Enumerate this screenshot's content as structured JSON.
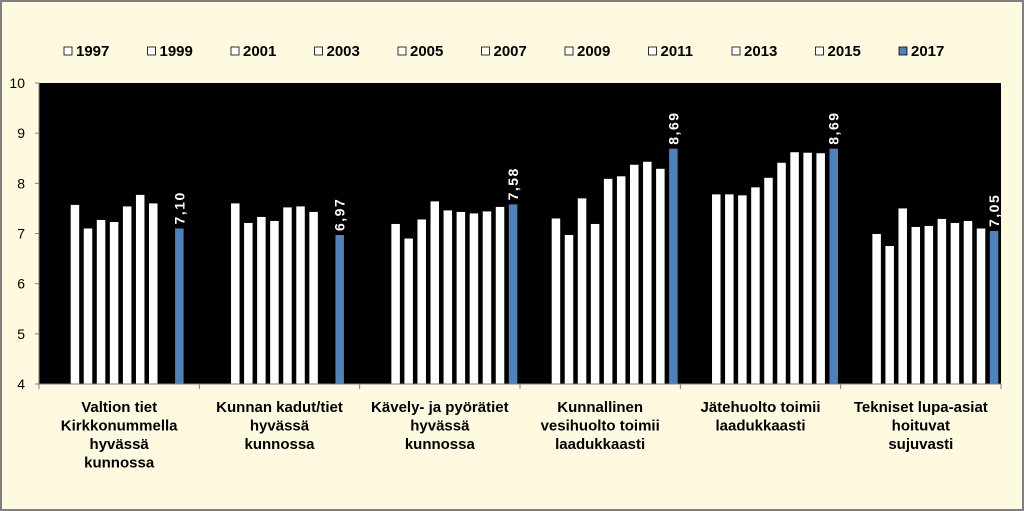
{
  "chart_data": {
    "type": "bar",
    "title": "",
    "xlabel": "",
    "ylabel": "",
    "ylim": [
      4,
      10
    ],
    "yticks": [
      4,
      5,
      6,
      7,
      8,
      9,
      10
    ],
    "grid": false,
    "legend_position": "top",
    "categories": [
      "Valtion tiet Kirkkonummella hyvässä kunnossa",
      "Kunnan kadut/tiet hyvässä kunnossa",
      "Kävely- ja pyörätiet hyvässä kunnossa",
      "Kunnallinen vesihuolto toimii laadukkaasti",
      "Jätehuolto toimii laadukkaasti",
      "Tekniset lupa-asiat hoituvat sujuvasti"
    ],
    "category_lines": [
      [
        "Valtion tiet",
        "Kirkkonummella",
        "hyvässä",
        "kunnossa"
      ],
      [
        "Kunnan kadut/tiet",
        "hyvässä",
        "kunnossa"
      ],
      [
        "Kävely- ja pyörätiet",
        "hyvässä",
        "kunnossa"
      ],
      [
        "Kunnallinen",
        "vesihuolto toimii",
        "laadukkaasti"
      ],
      [
        "Jätehuolto toimii",
        "laadukkaasti"
      ],
      [
        "Tekniset lupa-asiat",
        "hoituvat",
        "sujuvasti"
      ]
    ],
    "series": [
      {
        "name": "1997",
        "color": "#ffffff",
        "values": [
          null,
          null,
          null,
          null,
          null,
          null
        ]
      },
      {
        "name": "1999",
        "color": "#ffffff",
        "values": [
          null,
          null,
          null,
          null,
          null,
          null
        ]
      },
      {
        "name": "2001",
        "color": "#ffffff",
        "values": [
          7.57,
          7.6,
          7.19,
          7.3,
          7.78,
          6.99
        ]
      },
      {
        "name": "2003",
        "color": "#ffffff",
        "values": [
          7.1,
          7.21,
          6.9,
          6.97,
          7.78,
          6.75
        ]
      },
      {
        "name": "2005",
        "color": "#ffffff",
        "values": [
          7.27,
          7.33,
          7.28,
          7.7,
          7.76,
          7.5
        ]
      },
      {
        "name": "2007",
        "color": "#ffffff",
        "values": [
          7.23,
          7.25,
          7.64,
          7.19,
          7.92,
          7.13
        ]
      },
      {
        "name": "2009",
        "color": "#ffffff",
        "values": [
          7.54,
          7.52,
          7.46,
          8.09,
          8.11,
          7.15
        ]
      },
      {
        "name": "2011",
        "color": "#ffffff",
        "values": [
          7.77,
          7.54,
          7.43,
          8.14,
          8.41,
          7.29
        ]
      },
      {
        "name": "2013",
        "color": "#ffffff",
        "values": [
          7.6,
          7.43,
          7.4,
          8.37,
          8.62,
          7.21
        ]
      },
      {
        "name": "2015",
        "color": "#ffffff",
        "values": [
          null,
          null,
          7.44,
          8.43,
          8.61,
          7.25
        ]
      },
      {
        "name": "2017",
        "color": "#4f81bd",
        "values": [
          7.1,
          6.97,
          7.58,
          8.69,
          8.69,
          7.05
        ]
      }
    ],
    "extra_values": [
      [],
      [],
      [
        7.53
      ],
      [
        8.29
      ],
      [
        8.6
      ],
      [
        7.1
      ]
    ],
    "data_labels": [
      "7,10",
      "6,97",
      "7,58",
      "8,69",
      "8,69",
      "7,05"
    ]
  },
  "colors": {
    "background": "#fefadf",
    "plot_area": "#000000",
    "bar": "#ffffff",
    "highlight": "#4f81bd"
  }
}
